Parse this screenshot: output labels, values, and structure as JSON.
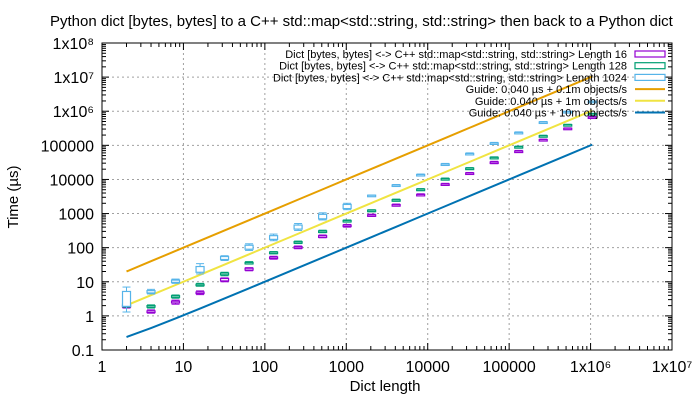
{
  "chart_data": {
    "type": "box",
    "title": "Python dict [bytes, bytes] to a C++ std::map<std::string, std::string> then back to a Python dict",
    "xlabel": "Dict length",
    "ylabel": "Time (µs)",
    "xscale": "log",
    "yscale": "log",
    "xlim": [
      1,
      10000000
    ],
    "ylim": [
      0.1,
      100000000
    ],
    "grid": true,
    "legend_position": "top-right",
    "x_tick_labels": [
      "1",
      "10",
      "100",
      "1000",
      "10000",
      "100000",
      "1x10⁶",
      "1x10⁷"
    ],
    "y_tick_labels": [
      "0.1",
      "1",
      "10",
      "100",
      "1000",
      "10000",
      "100000",
      "1x10⁶",
      "1x10⁷",
      "1x10⁸"
    ],
    "series": [
      {
        "name": "Dict [bytes, bytes] <-> C++ std::map<std::string, std::string> Length 16",
        "color": "#9400d3",
        "kind": "box",
        "points": [
          {
            "x": 2,
            "low": 1.7,
            "q1": 1.8,
            "q3": 2.0,
            "high": 2.1
          },
          {
            "x": 4,
            "low": 1.2,
            "q1": 1.25,
            "q3": 1.4,
            "high": 1.5
          },
          {
            "x": 8,
            "low": 2.2,
            "q1": 2.4,
            "q3": 2.7,
            "high": 2.9
          },
          {
            "x": 16,
            "low": 4.2,
            "q1": 4.5,
            "q3": 5.0,
            "high": 5.4
          },
          {
            "x": 32,
            "low": 10,
            "q1": 10.6,
            "q3": 12.5,
            "high": 13
          },
          {
            "x": 64,
            "low": 21,
            "q1": 22,
            "q3": 25,
            "high": 26
          },
          {
            "x": 128,
            "low": 46,
            "q1": 48,
            "q3": 53,
            "high": 56
          },
          {
            "x": 256,
            "low": 93,
            "q1": 97,
            "q3": 107,
            "high": 112
          },
          {
            "x": 512,
            "low": 195,
            "q1": 200,
            "q3": 225,
            "high": 235
          },
          {
            "x": 1024,
            "low": 400,
            "q1": 420,
            "q3": 460,
            "high": 480
          },
          {
            "x": 2048,
            "low": 820,
            "q1": 850,
            "q3": 920,
            "high": 960
          },
          {
            "x": 4096,
            "low": 1650,
            "q1": 1700,
            "q3": 1830,
            "high": 1900
          },
          {
            "x": 8192,
            "low": 3300,
            "q1": 3400,
            "q3": 3650,
            "high": 3800
          },
          {
            "x": 16384,
            "low": 6700,
            "q1": 6900,
            "q3": 7400,
            "high": 7700
          },
          {
            "x": 32768,
            "low": 14000,
            "q1": 14500,
            "q3": 15500,
            "high": 16000
          },
          {
            "x": 65536,
            "low": 29000,
            "q1": 30000,
            "q3": 32500,
            "high": 34000
          },
          {
            "x": 131072,
            "low": 62000,
            "q1": 64000,
            "q3": 68000,
            "high": 71000
          },
          {
            "x": 262144,
            "low": 135000,
            "q1": 140000,
            "q3": 148000,
            "high": 152000
          },
          {
            "x": 524288,
            "low": 290000,
            "q1": 300000,
            "q3": 318000,
            "high": 325000
          },
          {
            "x": 1048576,
            "low": 620000,
            "q1": 640000,
            "q3": 680000,
            "high": 700000
          }
        ]
      },
      {
        "name": "Dict [bytes, bytes] <-> C++ std::map<std::string, std::string> Length 128",
        "color": "#009e73",
        "kind": "box",
        "points": [
          {
            "x": 2,
            "low": 1.8,
            "q1": 1.9,
            "q3": 2.2,
            "high": 2.4
          },
          {
            "x": 4,
            "low": 1.7,
            "q1": 1.8,
            "q3": 2.0,
            "high": 2.1
          },
          {
            "x": 8,
            "low": 3.3,
            "q1": 3.5,
            "q3": 3.9,
            "high": 4.1
          },
          {
            "x": 16,
            "low": 7.4,
            "q1": 7.8,
            "q3": 8.5,
            "high": 9.0
          },
          {
            "x": 32,
            "low": 15,
            "q1": 16,
            "q3": 18,
            "high": 19
          },
          {
            "x": 64,
            "low": 33,
            "q1": 34,
            "q3": 37,
            "high": 39
          },
          {
            "x": 128,
            "low": 66,
            "q1": 68,
            "q3": 74,
            "high": 77
          },
          {
            "x": 256,
            "low": 132,
            "q1": 137,
            "q3": 150,
            "high": 156
          },
          {
            "x": 512,
            "low": 275,
            "q1": 285,
            "q3": 310,
            "high": 325
          },
          {
            "x": 1024,
            "low": 560,
            "q1": 580,
            "q3": 630,
            "high": 650
          },
          {
            "x": 2048,
            "low": 1130,
            "q1": 1170,
            "q3": 1260,
            "high": 1300
          },
          {
            "x": 4096,
            "low": 2300,
            "q1": 2380,
            "q3": 2550,
            "high": 2650
          },
          {
            "x": 8192,
            "low": 4700,
            "q1": 4850,
            "q3": 5200,
            "high": 5400
          },
          {
            "x": 16384,
            "low": 9600,
            "q1": 9900,
            "q3": 10600,
            "high": 11000
          },
          {
            "x": 32768,
            "low": 19500,
            "q1": 20000,
            "q3": 21500,
            "high": 22300
          },
          {
            "x": 65536,
            "low": 40000,
            "q1": 41500,
            "q3": 44500,
            "high": 46000
          },
          {
            "x": 131072,
            "low": 83000,
            "q1": 86000,
            "q3": 92000,
            "high": 95000
          },
          {
            "x": 262144,
            "low": 175000,
            "q1": 180000,
            "q3": 192000,
            "high": 198000
          },
          {
            "x": 524288,
            "low": 370000,
            "q1": 380000,
            "q3": 405000,
            "high": 415000
          },
          {
            "x": 1048576,
            "low": 780000,
            "q1": 800000,
            "q3": 850000,
            "high": 870000
          }
        ]
      },
      {
        "name": "Dict [bytes, bytes] <-> C++ std::map<std::string, std::string> Length 1024",
        "color": "#56b4e9",
        "kind": "box",
        "points": [
          {
            "x": 2,
            "low": 1.3,
            "q1": 1.9,
            "q3": 5.2,
            "high": 7.0
          },
          {
            "x": 4,
            "low": 4.4,
            "q1": 4.7,
            "q3": 5.5,
            "high": 6.0
          },
          {
            "x": 8,
            "low": 9.0,
            "q1": 9.6,
            "q3": 11.2,
            "high": 12
          },
          {
            "x": 16,
            "low": 17,
            "q1": 19,
            "q3": 28,
            "high": 34
          },
          {
            "x": 32,
            "low": 42,
            "q1": 45,
            "q3": 55,
            "high": 58
          },
          {
            "x": 64,
            "low": 83,
            "q1": 90,
            "q3": 118,
            "high": 130
          },
          {
            "x": 128,
            "low": 160,
            "q1": 175,
            "q3": 225,
            "high": 250
          },
          {
            "x": 256,
            "low": 320,
            "q1": 350,
            "q3": 460,
            "high": 510
          },
          {
            "x": 512,
            "low": 650,
            "q1": 700,
            "q3": 950,
            "high": 1050
          },
          {
            "x": 1024,
            "low": 1300,
            "q1": 1400,
            "q3": 1850,
            "high": 2000
          },
          {
            "x": 2048,
            "low": 3200,
            "q1": 3300,
            "q3": 3450,
            "high": 3500
          },
          {
            "x": 4096,
            "low": 6400,
            "q1": 6600,
            "q3": 6900,
            "high": 7100
          },
          {
            "x": 8192,
            "low": 13000,
            "q1": 13400,
            "q3": 14000,
            "high": 14400
          },
          {
            "x": 16384,
            "low": 26000,
            "q1": 27000,
            "q3": 28500,
            "high": 29500
          },
          {
            "x": 32768,
            "low": 53000,
            "q1": 55000,
            "q3": 58000,
            "high": 60000
          },
          {
            "x": 65536,
            "low": 108000,
            "q1": 112000,
            "q3": 118000,
            "high": 122000
          },
          {
            "x": 131072,
            "low": 220000,
            "q1": 228000,
            "q3": 240000,
            "high": 248000
          },
          {
            "x": 262144,
            "low": 445000,
            "q1": 460000,
            "q3": 485000,
            "high": 500000
          },
          {
            "x": 524288,
            "low": 900000,
            "q1": 930000,
            "q3": 980000,
            "high": 1000000
          },
          {
            "x": 1048576,
            "low": 1800000,
            "q1": 1860000,
            "q3": 1960000,
            "high": 2000000
          }
        ]
      },
      {
        "name": "Guide: 0.040 µs + 0.1m objects/s",
        "color": "#e69f00",
        "kind": "line",
        "x": [
          2,
          4,
          8,
          16,
          32,
          64,
          128,
          256,
          512,
          1024,
          2048,
          4096,
          8192,
          16384,
          32768,
          65536,
          131072,
          262144,
          524288,
          1048576
        ],
        "y": [
          20.04,
          40.04,
          80.04,
          160.04,
          320.04,
          640.04,
          1280.04,
          2560.04,
          5120.04,
          10240.04,
          20480.04,
          40960.04,
          81920.04,
          163840.04,
          327680.04,
          655360.04,
          1310720.04,
          2621440.04,
          5242880.04,
          10485760.04
        ]
      },
      {
        "name": "Guide: 0.040 µs + 1m objects/s",
        "color": "#f0e442",
        "kind": "line",
        "x": [
          2,
          4,
          8,
          16,
          32,
          64,
          128,
          256,
          512,
          1024,
          2048,
          4096,
          8192,
          16384,
          32768,
          65536,
          131072,
          262144,
          524288,
          1048576
        ],
        "y": [
          2.04,
          4.04,
          8.04,
          16.04,
          32.04,
          64.04,
          128.04,
          256.04,
          512.04,
          1024.04,
          2048.04,
          4096.04,
          8192.04,
          16384.04,
          32768.04,
          65536.04,
          131072.04,
          262144.04,
          524288.04,
          1048576.04
        ]
      },
      {
        "name": "Guide: 0.040 µs + 10m objects/s",
        "color": "#0072b2",
        "kind": "line",
        "x": [
          2,
          4,
          8,
          16,
          32,
          64,
          128,
          256,
          512,
          1024,
          2048,
          4096,
          8192,
          16384,
          32768,
          65536,
          131072,
          262144,
          524288,
          1048576
        ],
        "y": [
          0.24,
          0.44,
          0.84,
          1.64,
          3.24,
          6.44,
          12.84,
          25.64,
          51.24,
          102.44,
          204.84,
          409.64,
          819.24,
          1638.44,
          3276.84,
          6553.64,
          13107.24,
          26214.44,
          52428.84,
          104857.64
        ]
      }
    ]
  }
}
